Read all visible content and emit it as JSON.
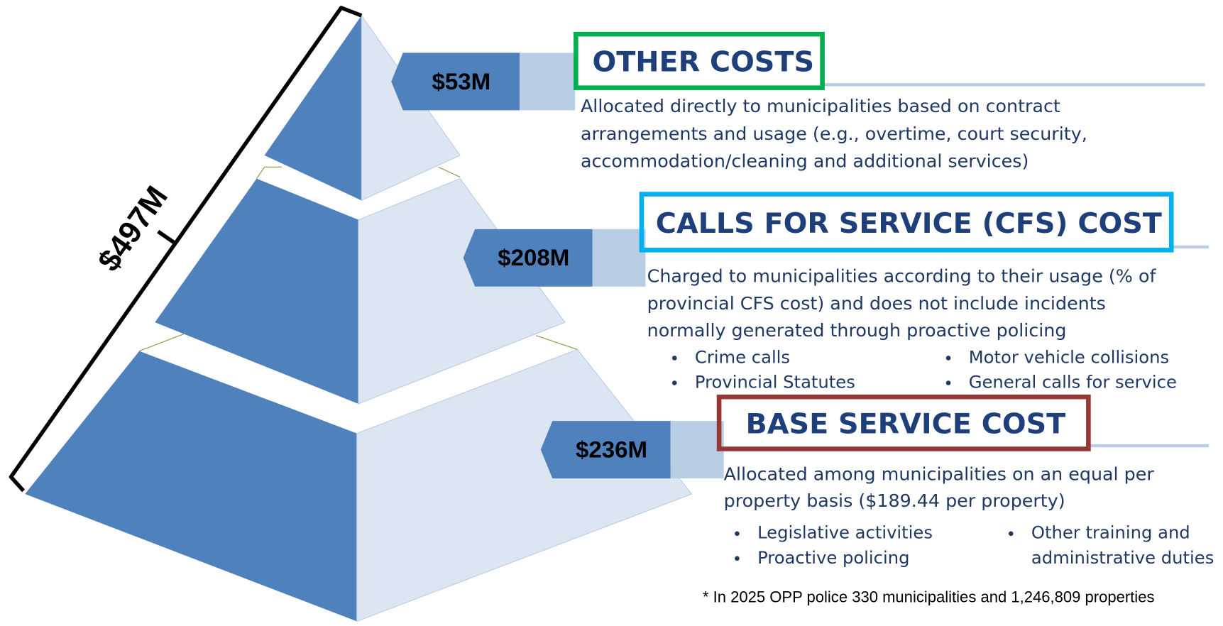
{
  "total": "$497M",
  "tiers": [
    {
      "amount": "$53M",
      "title": "OTHER COSTS",
      "description": [
        "Allocated directly to municipalities based on contract",
        "arrangements and usage (e.g., overtime, court security,",
        "accommodation/cleaning and additional services)"
      ],
      "bullets": []
    },
    {
      "amount": "$208M",
      "title": "CALLS FOR SERVICE (CFS) COST",
      "description": [
        "Charged to municipalities according to their usage (% of",
        "provincial CFS cost) and does not include incidents",
        "normally generated through proactive policing"
      ],
      "bullets": [
        [
          "Crime calls"
        ],
        [
          "Provincial Statutes"
        ],
        [
          "Motor vehicle collisions"
        ],
        [
          "General calls for service"
        ]
      ]
    },
    {
      "amount": "$236M",
      "title": "BASE SERVICE COST",
      "description": [
        "Allocated among municipalities on an equal per",
        "property basis ($189.44 per property)"
      ],
      "bullets": [
        [
          "Legislative activities"
        ],
        [
          "Proactive policing"
        ],
        [
          "Other training and",
          "administrative duties"
        ]
      ]
    }
  ],
  "footnote": "* In 2025 OPP police 330 municipalities and 1,246,809 properties"
}
